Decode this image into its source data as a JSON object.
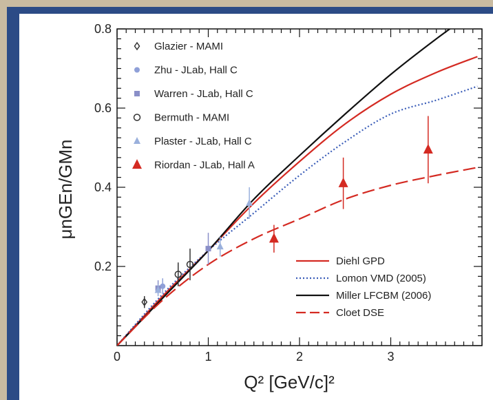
{
  "chart_data": {
    "type": "scatter",
    "xlabel": "Q² [GeV/c]²",
    "ylabel": "μnGEn/GMn",
    "xlim": [
      0,
      4
    ],
    "ylim": [
      0,
      0.8
    ],
    "x_ticks": [
      "0",
      "1",
      "2",
      "3"
    ],
    "y_ticks": [
      "0.2",
      "0.4",
      "0.6",
      "0.8"
    ],
    "grid": false,
    "legend_data_placement": "top-left",
    "legend_curves_placement": "bottom-right",
    "data_series": [
      {
        "name": "Glazier - MAMI",
        "marker": "open-diamond",
        "color": "#333333",
        "points": [
          {
            "x": 0.3,
            "y": 0.11,
            "err": 0.015
          }
        ]
      },
      {
        "name": "Zhu - JLab, Hall C",
        "marker": "filled-circle",
        "color": "#8fa0d8",
        "points": [
          {
            "x": 0.5,
            "y": 0.15,
            "err": 0.02
          }
        ]
      },
      {
        "name": "Warren - JLab, Hall C",
        "marker": "filled-square",
        "color": "#8a8fc8",
        "points": [
          {
            "x": 0.45,
            "y": 0.145,
            "err": 0.02
          },
          {
            "x": 1.0,
            "y": 0.245,
            "err": 0.04
          }
        ]
      },
      {
        "name": "Bermuth - MAMI",
        "marker": "open-circle",
        "color": "#333333",
        "points": [
          {
            "x": 0.67,
            "y": 0.18,
            "err": 0.03
          },
          {
            "x": 0.8,
            "y": 0.205,
            "err": 0.04
          }
        ]
      },
      {
        "name": "Plaster - JLab, Hall C",
        "marker": "filled-triangle",
        "color": "#9ab0dc",
        "points": [
          {
            "x": 0.45,
            "y": 0.14,
            "err": 0.015
          },
          {
            "x": 1.13,
            "y": 0.25,
            "err": 0.025
          },
          {
            "x": 1.45,
            "y": 0.36,
            "err": 0.04
          }
        ]
      },
      {
        "name": "Riordan - JLab, Hall A",
        "marker": "filled-triangle",
        "color": "#d42a22",
        "points": [
          {
            "x": 1.72,
            "y": 0.27,
            "err": 0.035
          },
          {
            "x": 2.48,
            "y": 0.41,
            "err": 0.065
          },
          {
            "x": 3.41,
            "y": 0.495,
            "err": 0.085
          }
        ]
      }
    ],
    "curves": [
      {
        "name": "Diehl GPD",
        "style": "solid",
        "color": "#d42a22",
        "x": [
          0,
          0.5,
          1.0,
          1.5,
          2.0,
          2.5,
          3.0,
          3.5,
          3.95
        ],
        "y": [
          0,
          0.125,
          0.24,
          0.36,
          0.465,
          0.56,
          0.635,
          0.69,
          0.73
        ]
      },
      {
        "name": "Lomon VMD (2005)",
        "style": "dotted",
        "color": "#3a5db8",
        "x": [
          0,
          0.5,
          1.0,
          1.5,
          2.0,
          2.5,
          3.0,
          3.5,
          3.95
        ],
        "y": [
          0,
          0.13,
          0.24,
          0.335,
          0.43,
          0.515,
          0.585,
          0.62,
          0.655
        ]
      },
      {
        "name": "Miller LFCBM (2006)",
        "style": "solid",
        "color": "#111111",
        "x": [
          0,
          0.5,
          1.0,
          1.5,
          2.0,
          2.5,
          3.0,
          3.5,
          3.95
        ],
        "y": [
          0,
          0.12,
          0.24,
          0.37,
          0.48,
          0.585,
          0.685,
          0.775,
          0.85
        ]
      },
      {
        "name": "Cloet DSE",
        "style": "dashed",
        "color": "#d42a22",
        "x": [
          0,
          0.5,
          1.0,
          1.5,
          2.0,
          2.5,
          3.0,
          3.5,
          3.95
        ],
        "y": [
          0,
          0.115,
          0.205,
          0.27,
          0.32,
          0.37,
          0.405,
          0.43,
          0.45
        ]
      }
    ]
  }
}
